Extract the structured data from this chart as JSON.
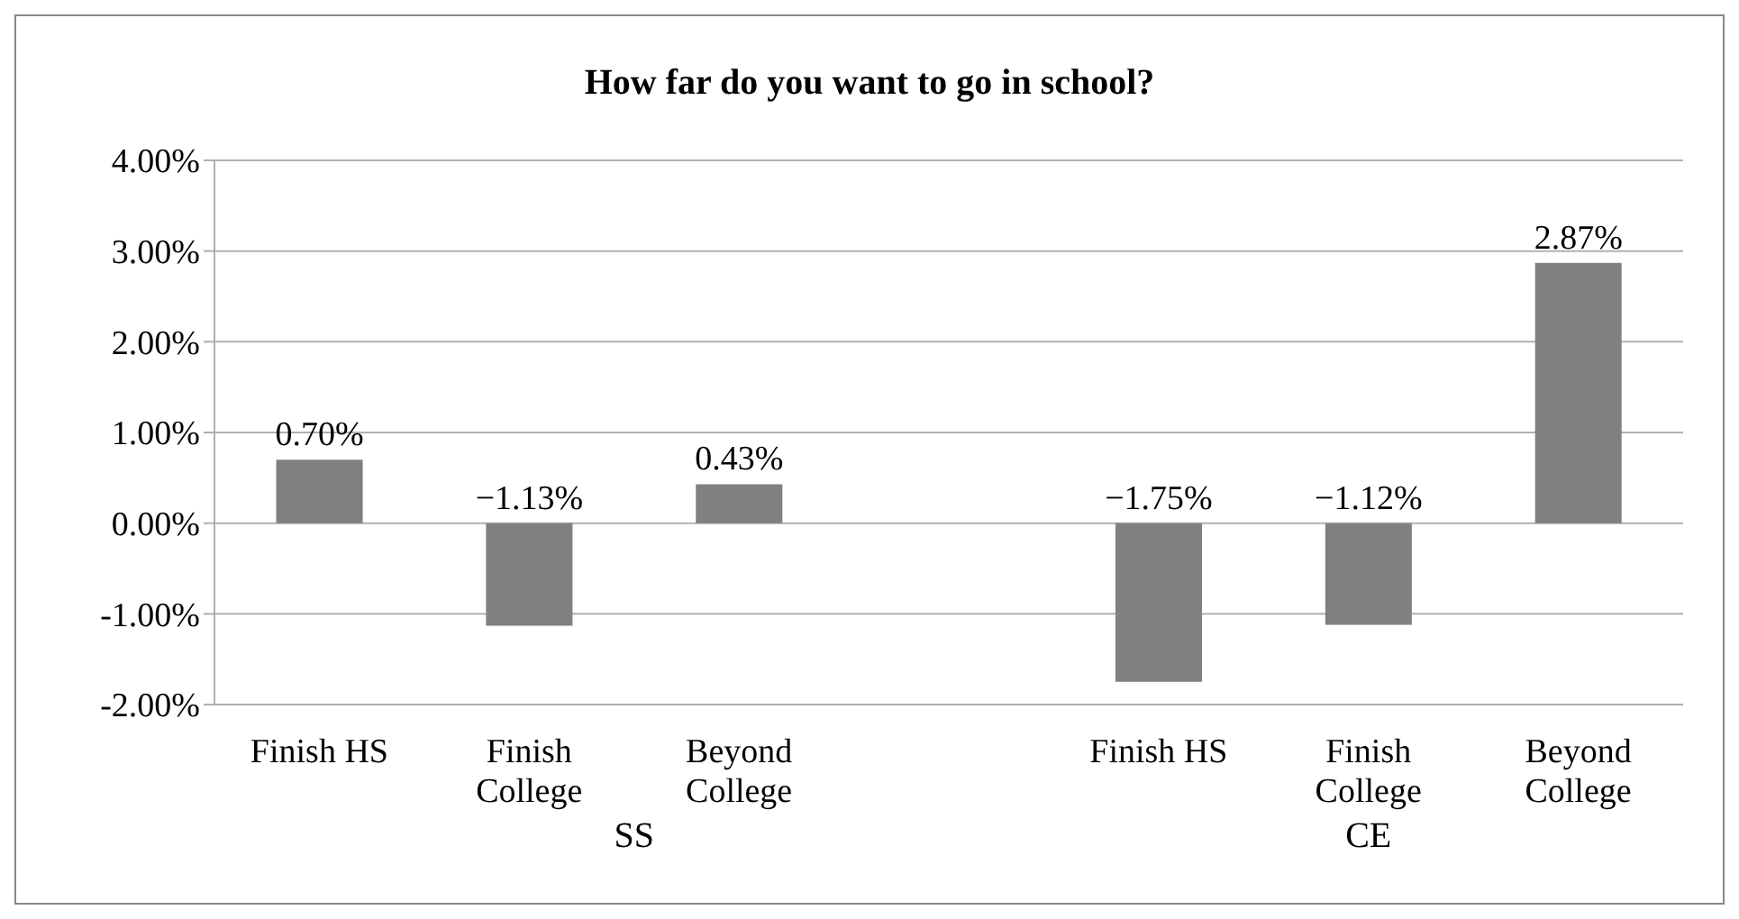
{
  "chart_data": {
    "type": "bar",
    "title": "How far do you want to go in school?",
    "categories": [
      "Finish HS",
      "Finish College",
      "Beyond College",
      null,
      "Finish HS",
      "Finish College",
      "Beyond College"
    ],
    "values": [
      0.7,
      -1.13,
      0.43,
      null,
      -1.75,
      -1.12,
      2.87
    ],
    "value_labels": [
      "0.70%",
      "−1.13%",
      "0.43%",
      null,
      "−1.75%",
      "−1.12%",
      "2.87%"
    ],
    "color": "#808080",
    "ylim": [
      -2,
      4
    ],
    "yticks": [
      {
        "value": -2,
        "label": "-2.00%"
      },
      {
        "value": -1,
        "label": "-1.00%"
      },
      {
        "value": 0,
        "label": "0.00%"
      },
      {
        "value": 1,
        "label": "1.00%"
      },
      {
        "value": 2,
        "label": "2.00%"
      },
      {
        "value": 3,
        "label": "3.00%"
      },
      {
        "value": 4,
        "label": "4.00%"
      }
    ],
    "grid": "y",
    "annotations": [
      "SS",
      "CE"
    ]
  }
}
